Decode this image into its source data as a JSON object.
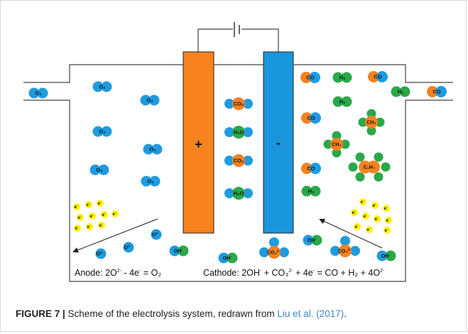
{
  "diagram": {
    "anode_sign": "+",
    "cathode_sign": "-",
    "molecule_labels": {
      "o2": "O₂",
      "co2": "CO₂",
      "h2o": "H₂O",
      "co": "CO",
      "h2": "H₂",
      "ch4": "CH₄",
      "c2h4": "C₂H₄",
      "o2_ion": "O",
      "o2_ion_charge": "2-",
      "oh": "OH",
      "oh_charge": "-",
      "co3": "CO₃",
      "co3_charge": "2-",
      "electron": "e",
      "electron_charge": "-"
    },
    "anode_equation": {
      "prefix": "Anode: 2O",
      "charge1": "2-",
      "mid": " - 4e",
      "charge2": "-",
      "suffix": " = O₂"
    },
    "cathode_equation": {
      "prefix": "Cathode: 2OH",
      "charge1": "-",
      "mid1": " + CO₃",
      "charge2": "2-",
      "mid2": " + 4e",
      "charge3": "-",
      "mid3": " = CO + H₂ + 4O",
      "charge4": "2-"
    },
    "colors": {
      "anode": "#f7821e",
      "cathode": "#1996dc",
      "oxygen_blue": "#1f9be0",
      "carbon_orange": "#f58220",
      "hydrogen_green": "#2aa84a",
      "electron_yellow": "#fff200"
    }
  },
  "caption": {
    "label": "FIGURE 7 |",
    "text": " Scheme of the electrolysis system, redrawn from ",
    "reference": "Liu et al. (2017)",
    "end": "."
  }
}
